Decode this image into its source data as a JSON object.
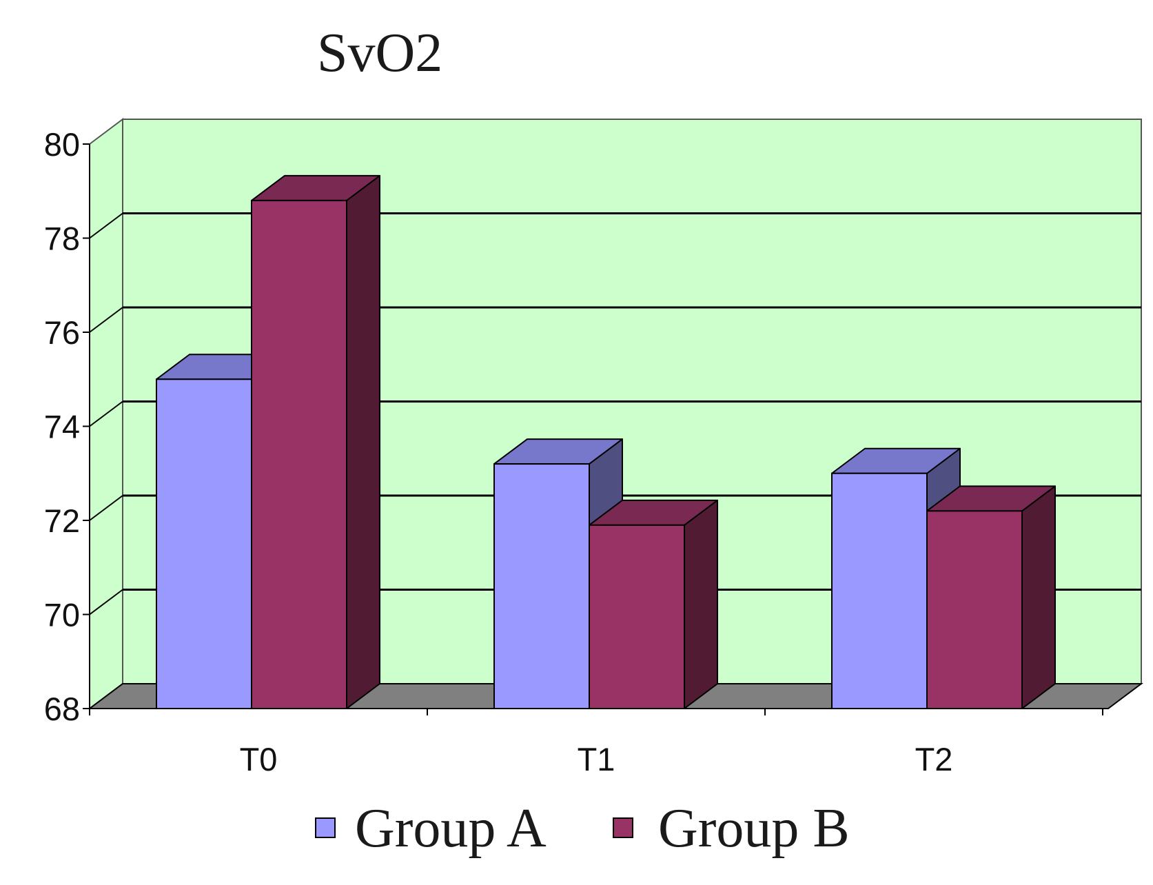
{
  "chart_data": {
    "type": "bar",
    "style": "3d-clustered-column",
    "title": "SvO2",
    "xlabel": "",
    "ylabel": "",
    "categories": [
      "T0",
      "T1",
      "T2"
    ],
    "series": [
      {
        "name": "Group A",
        "values": [
          75.0,
          73.2,
          73.0
        ]
      },
      {
        "name": "Group B",
        "values": [
          78.8,
          71.9,
          72.2
        ]
      }
    ],
    "ylim": [
      68,
      80
    ],
    "yticks": [
      68,
      70,
      72,
      74,
      76,
      78,
      80
    ],
    "grid": true,
    "legend_position": "bottom",
    "colors": {
      "plot_wall": "#ccffcc",
      "floor": "#808080",
      "group_a_front": "#9999ff",
      "group_a_top": "#7777cc",
      "group_a_side": "#4f4f82",
      "group_b_front": "#993366",
      "group_b_top": "#7a2952",
      "group_b_side": "#511c33"
    }
  }
}
